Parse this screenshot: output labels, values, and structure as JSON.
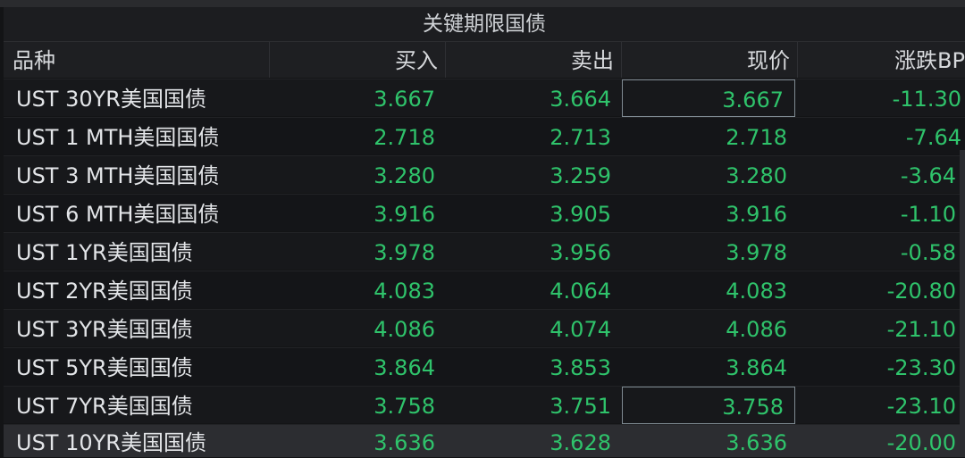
{
  "panel": {
    "title": "关键期限国债"
  },
  "columns": [
    "品种",
    "买入",
    "卖出",
    "现价",
    "涨跌BP"
  ],
  "rows": [
    {
      "name": "UST 30YR美国国债",
      "bid": "3.667",
      "ask": "3.664",
      "last": "3.667",
      "chg": "-11.30"
    },
    {
      "name": "UST 1 MTH美国国债",
      "bid": "2.718",
      "ask": "2.713",
      "last": "2.718",
      "chg": "-7.64"
    },
    {
      "name": "UST 3 MTH美国国债",
      "bid": "3.280",
      "ask": "3.259",
      "last": "3.280",
      "chg": "-3.64"
    },
    {
      "name": "UST 6 MTH美国国债",
      "bid": "3.916",
      "ask": "3.905",
      "last": "3.916",
      "chg": "-1.10"
    },
    {
      "name": "UST 1YR美国国债",
      "bid": "3.978",
      "ask": "3.956",
      "last": "3.978",
      "chg": "-0.58"
    },
    {
      "name": "UST 2YR美国国债",
      "bid": "4.083",
      "ask": "4.064",
      "last": "4.083",
      "chg": "-20.80"
    },
    {
      "name": "UST 3YR美国国债",
      "bid": "4.086",
      "ask": "4.074",
      "last": "4.086",
      "chg": "-21.10"
    },
    {
      "name": "UST 5YR美国国债",
      "bid": "3.864",
      "ask": "3.853",
      "last": "3.864",
      "chg": "-23.30"
    },
    {
      "name": "UST 7YR美国国债",
      "bid": "3.758",
      "ask": "3.751",
      "last": "3.758",
      "chg": "-23.10"
    },
    {
      "name": "UST 10YR美国国债",
      "bid": "3.636",
      "ask": "3.628",
      "last": "3.636",
      "chg": "-20.00"
    }
  ],
  "colors": {
    "positive_text": "#2fc36b",
    "header_bg": "#1e1f22",
    "accent_border": "#7f8a92"
  }
}
